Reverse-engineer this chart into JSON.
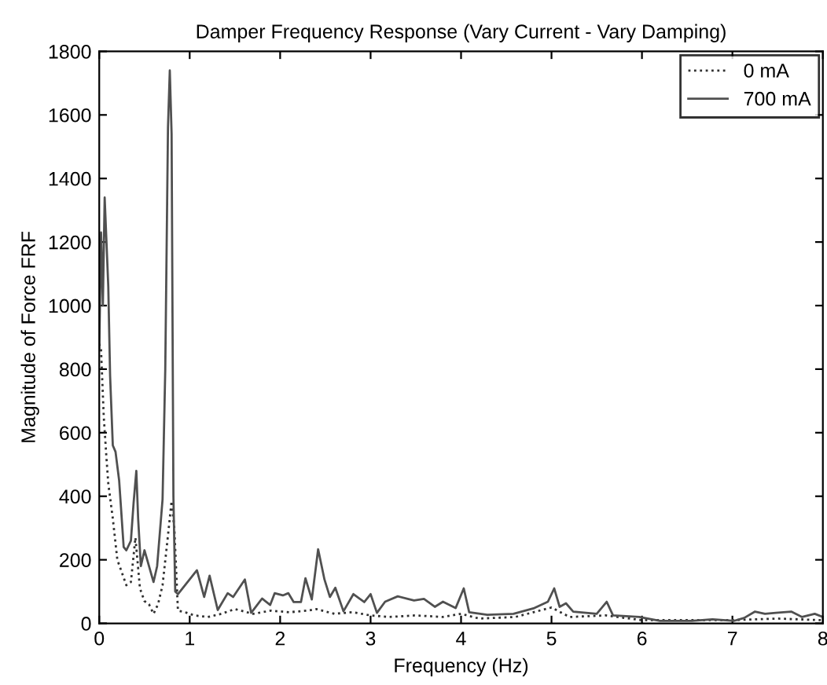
{
  "chart_data": {
    "type": "line",
    "title": "Damper Frequency Response (Vary Current - Vary Damping)",
    "xlabel": "Frequency (Hz)",
    "ylabel": "Magnitude of Force FRF",
    "xlim": [
      0,
      8
    ],
    "xticks": [
      0,
      1,
      2,
      3,
      4,
      5,
      6,
      7,
      8
    ],
    "ylim": [
      0,
      1800
    ],
    "yticks": [
      0,
      200,
      400,
      600,
      800,
      1000,
      1200,
      1400,
      1600,
      1800
    ],
    "grid": false,
    "legend": "top right",
    "series": [
      {
        "name": "0 mA",
        "color": "#303030",
        "line_style": "dotted",
        "x": [
          0.0,
          0.02,
          0.05,
          0.08,
          0.1,
          0.15,
          0.2,
          0.25,
          0.3,
          0.35,
          0.4,
          0.45,
          0.5,
          0.55,
          0.6,
          0.65,
          0.7,
          0.75,
          0.8,
          0.83,
          0.87,
          0.95,
          1.05,
          1.2,
          1.35,
          1.5,
          1.7,
          1.9,
          2.1,
          2.3,
          2.4,
          2.6,
          2.8,
          3.0,
          3.2,
          3.5,
          3.8,
          4.0,
          4.2,
          4.6,
          5.0,
          5.2,
          5.6,
          6.0,
          6.5,
          7.0,
          7.5,
          8.0
        ],
        "values": [
          880,
          860,
          650,
          520,
          440,
          330,
          200,
          160,
          120,
          130,
          270,
          110,
          70,
          60,
          30,
          60,
          120,
          250,
          385,
          300,
          40,
          35,
          25,
          20,
          30,
          45,
          30,
          40,
          35,
          40,
          45,
          30,
          35,
          25,
          20,
          25,
          20,
          30,
          15,
          20,
          50,
          20,
          25,
          10,
          10,
          10,
          15,
          10
        ]
      },
      {
        "name": "700 mA",
        "color": "#505050",
        "line_style": "solid",
        "x": [
          0.0,
          0.02,
          0.04,
          0.06,
          0.08,
          0.1,
          0.12,
          0.15,
          0.18,
          0.22,
          0.27,
          0.3,
          0.35,
          0.38,
          0.41,
          0.43,
          0.46,
          0.5,
          0.55,
          0.6,
          0.64,
          0.7,
          0.73,
          0.76,
          0.78,
          0.8,
          0.82,
          0.84,
          0.87,
          1.08,
          1.16,
          1.22,
          1.31,
          1.42,
          1.48,
          1.61,
          1.68,
          1.8,
          1.89,
          1.94,
          2.03,
          2.09,
          2.15,
          2.23,
          2.28,
          2.35,
          2.42,
          2.49,
          2.55,
          2.61,
          2.7,
          2.81,
          2.93,
          3.0,
          3.07,
          3.16,
          3.3,
          3.48,
          3.59,
          3.71,
          3.8,
          3.94,
          4.03,
          4.09,
          4.29,
          4.58,
          4.81,
          4.96,
          5.03,
          5.09,
          5.16,
          5.24,
          5.5,
          5.61,
          5.68,
          5.97,
          6.2,
          6.55,
          6.78,
          7.02,
          7.13,
          7.25,
          7.36,
          7.48,
          7.65,
          7.77,
          7.91,
          8.0
        ],
        "values": [
          860,
          1230,
          1000,
          1340,
          1200,
          1060,
          780,
          560,
          540,
          450,
          240,
          230,
          260,
          380,
          480,
          330,
          180,
          230,
          180,
          130,
          180,
          390,
          800,
          1560,
          1740,
          1540,
          400,
          100,
          92,
          167,
          83,
          150,
          42,
          95,
          83,
          138,
          33,
          78,
          58,
          95,
          88,
          95,
          67,
          67,
          142,
          75,
          233,
          138,
          83,
          112,
          38,
          92,
          67,
          92,
          33,
          68,
          85,
          72,
          77,
          52,
          68,
          48,
          110,
          35,
          27,
          30,
          48,
          68,
          110,
          52,
          63,
          37,
          30,
          68,
          25,
          20,
          8,
          8,
          13,
          8,
          17,
          37,
          30,
          33,
          37,
          20,
          30,
          20
        ]
      }
    ]
  }
}
